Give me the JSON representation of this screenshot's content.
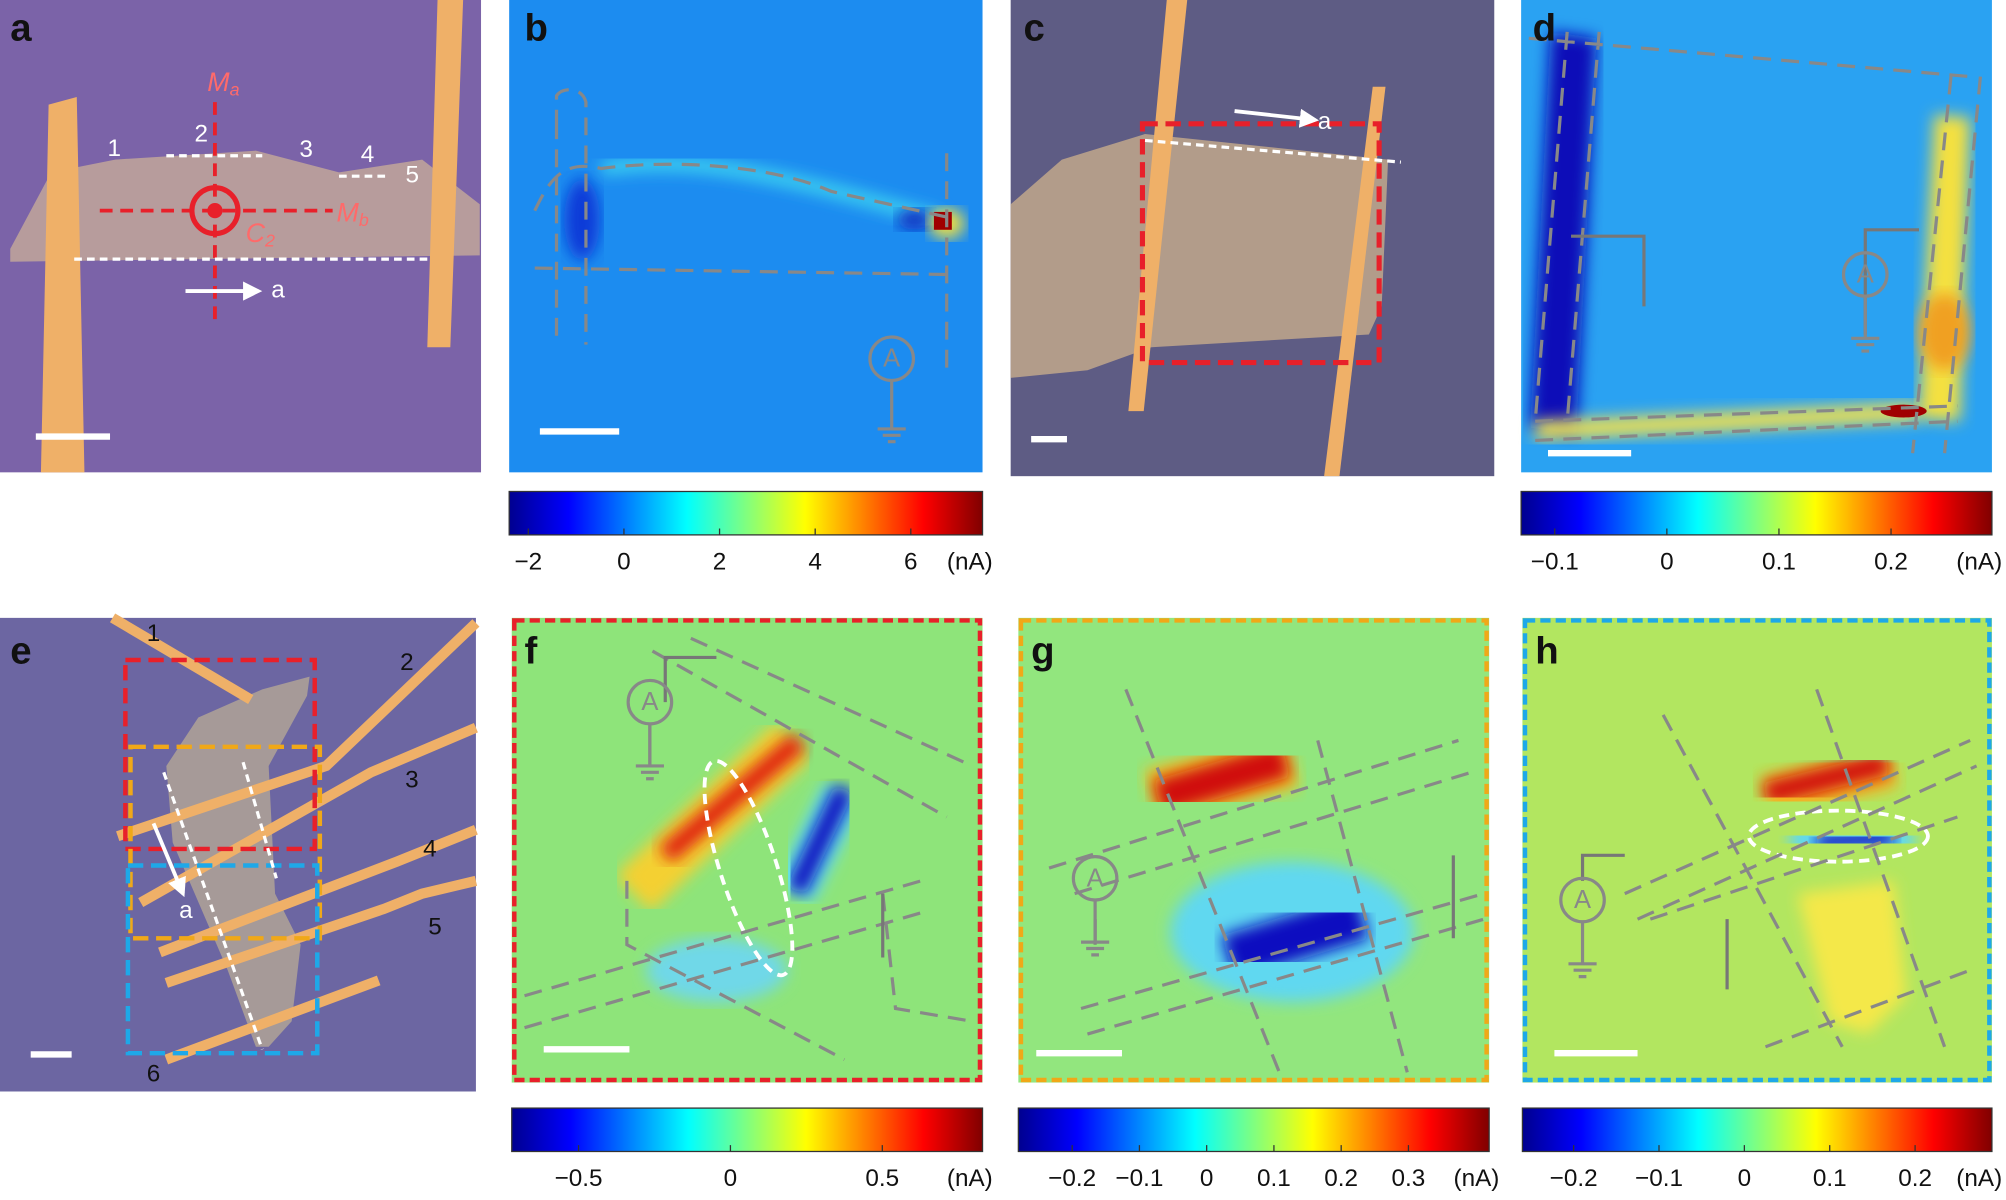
{
  "panels": [
    {
      "label": "a",
      "mirror_a": {
        "symbol": "M",
        "subscript": "a"
      },
      "mirror_b": {
        "symbol": "M",
        "subscript": "b"
      },
      "rotation": {
        "symbol": "C",
        "subscript": "2"
      },
      "edges": [
        "1",
        "2",
        "3",
        "4",
        "5"
      ],
      "axis": "a"
    },
    {
      "label": "b",
      "ammeter": "A"
    },
    {
      "label": "c",
      "axis": "a"
    },
    {
      "label": "d",
      "ammeter": "A"
    },
    {
      "label": "e",
      "electrodes": [
        "1",
        "2",
        "3",
        "4",
        "5",
        "6"
      ],
      "axis": "a"
    },
    {
      "label": "f",
      "ammeter": "A"
    },
    {
      "label": "g",
      "ammeter": "A"
    },
    {
      "label": "h",
      "ammeter": "A"
    }
  ],
  "colorbars": [
    {
      "lim": [
        -2.4,
        7.5
      ],
      "ticks": [
        {
          "value": -2,
          "label": "−2"
        },
        0,
        2,
        4,
        6
      ],
      "unit": "(nA)"
    },
    {
      "lim": [
        -0.13,
        0.29
      ],
      "ticks": [
        {
          "value": -0.1,
          "label": "−0.1"
        },
        0,
        0.1,
        0.2
      ],
      "unit": "(nA)"
    },
    {
      "lim": [
        -0.72,
        0.83
      ],
      "ticks": [
        {
          "value": -0.5,
          "label": "−0.5"
        },
        0,
        0.5
      ],
      "unit": "(nA)"
    },
    {
      "lim": [
        -0.28,
        0.42
      ],
      "ticks": [
        {
          "value": -0.2,
          "label": "−0.2"
        },
        {
          "value": -0.1,
          "label": "−0.1"
        },
        0,
        0.1,
        0.2,
        0.3
      ],
      "unit": "(nA)"
    },
    {
      "lim": [
        -0.26,
        0.29
      ],
      "ticks": [
        {
          "value": -0.2,
          "label": "−0.2"
        },
        {
          "value": -0.1,
          "label": "−0.1"
        },
        0,
        0.1,
        0.2
      ],
      "unit": "(nA)"
    }
  ]
}
